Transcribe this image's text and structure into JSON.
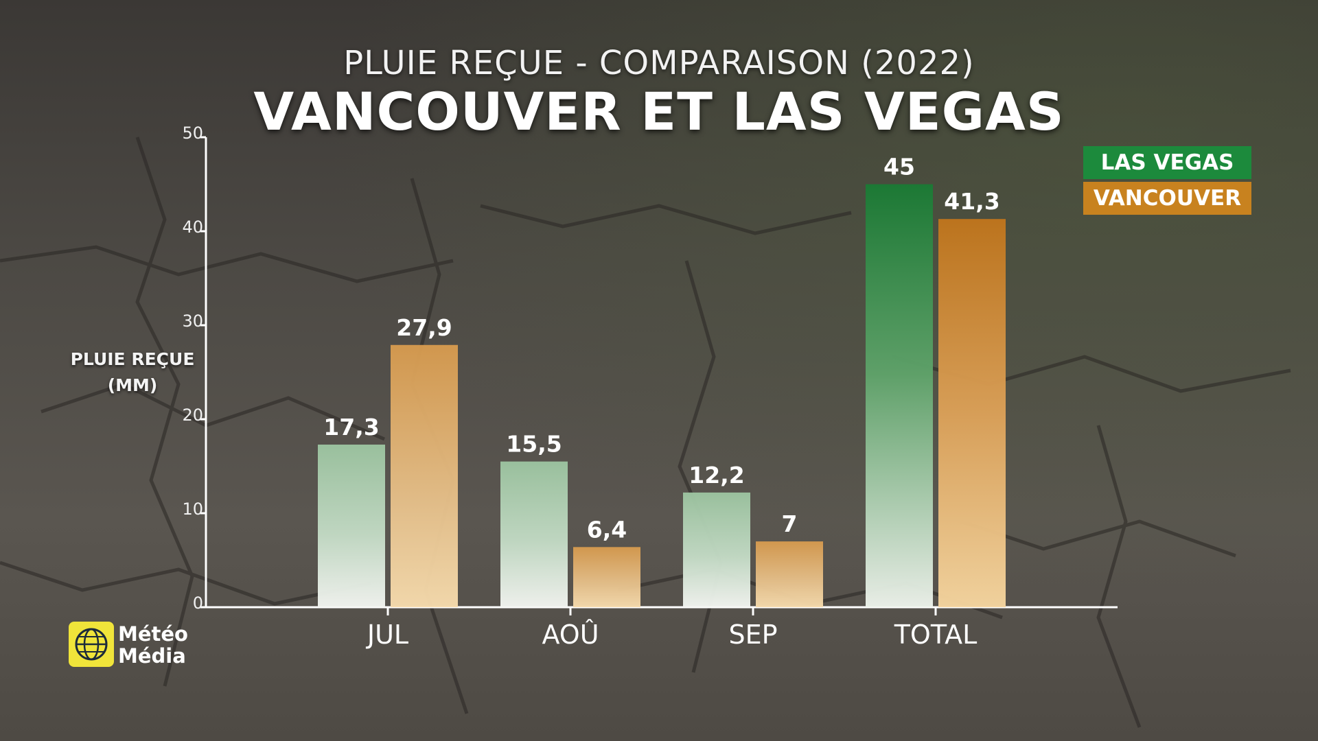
{
  "header": {
    "subtitle": "PLUIE REÇUE - COMPARAISON (2022)",
    "title": "VANCOUVER ET LAS VEGAS"
  },
  "axis": {
    "ylabel_line1": "PLUIE REÇUE",
    "ylabel_line2": "(MM)"
  },
  "legend": {
    "las_vegas": "LAS VEGAS",
    "vancouver": "VANCOUVER"
  },
  "logo": {
    "line1": "Météo",
    "line2": "Média"
  },
  "colors": {
    "las_vegas": "#1c8a3c",
    "vancouver": "#c8821f"
  },
  "chart_data": {
    "type": "bar",
    "categories": [
      "JUL",
      "AOÛ",
      "SEP",
      "TOTAL"
    ],
    "series": [
      {
        "name": "LAS VEGAS",
        "values": [
          17.3,
          15.5,
          12.2,
          45
        ],
        "labels": [
          "17,3",
          "15,5",
          "12,2",
          "45"
        ]
      },
      {
        "name": "VANCOUVER",
        "values": [
          27.9,
          6.4,
          7,
          41.3
        ],
        "labels": [
          "27,9",
          "6,4",
          "7",
          "41,3"
        ]
      }
    ],
    "ylabel": "PLUIE REÇUE (MM)",
    "ylim": [
      0,
      50
    ],
    "yticks": [
      0,
      10,
      20,
      30,
      40,
      50
    ],
    "legend_position": "top-right",
    "grid": false
  }
}
